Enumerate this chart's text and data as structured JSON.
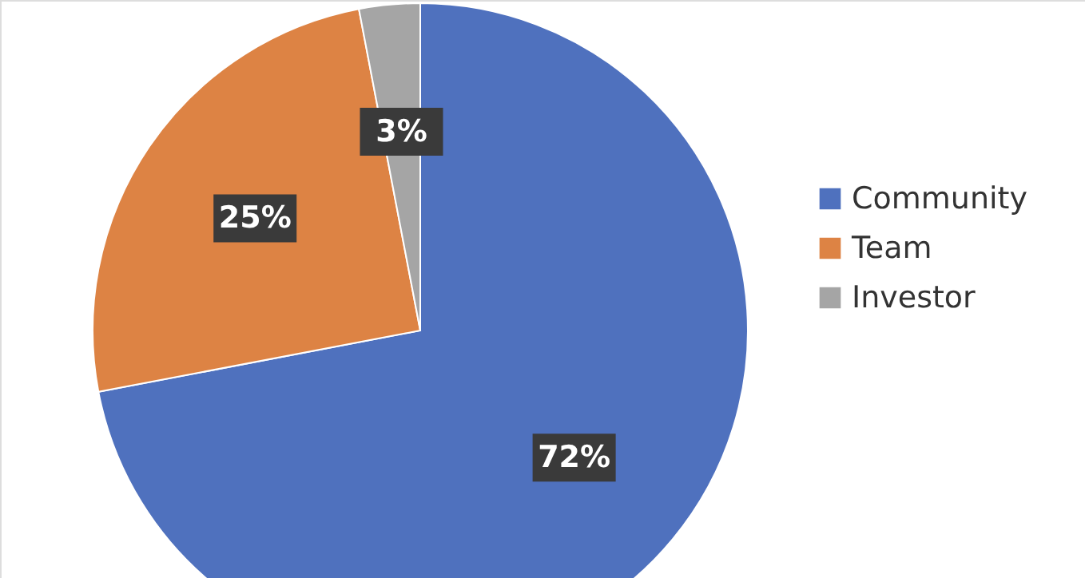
{
  "chart_data": {
    "type": "pie",
    "categories": [
      "Community",
      "Team",
      "Investor"
    ],
    "values": [
      72,
      25,
      3
    ],
    "colors": [
      "#4f71be",
      "#dd8344",
      "#a5a5a5"
    ],
    "value_labels": [
      "72%",
      "25%",
      "3%"
    ],
    "legend": "right"
  }
}
